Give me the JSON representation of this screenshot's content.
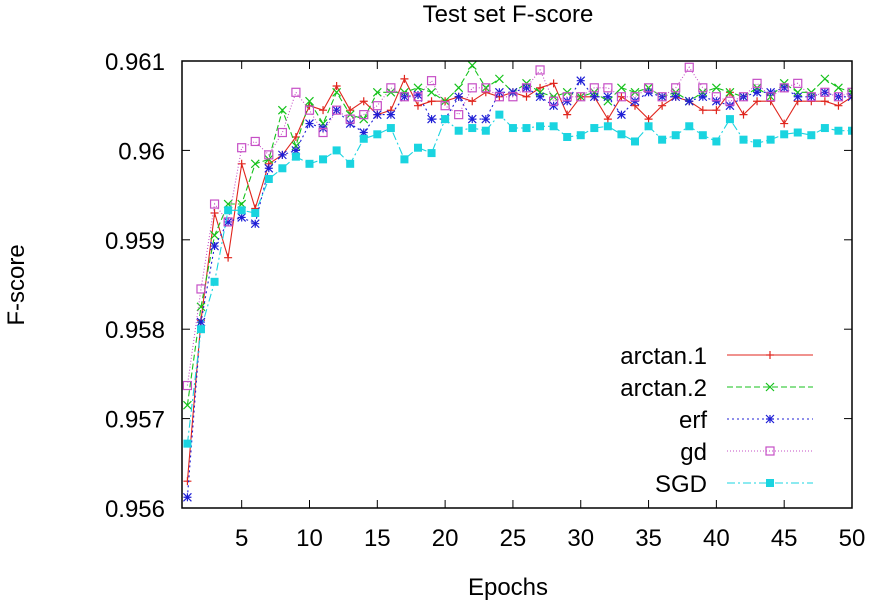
{
  "chart_data": {
    "type": "line",
    "title": "Test set F-score",
    "xlabel": "Epochs",
    "ylabel": "F-score",
    "xlim": [
      0.6,
      50
    ],
    "ylim": [
      0.956,
      0.961
    ],
    "xticks": [
      5,
      10,
      15,
      20,
      25,
      30,
      35,
      40,
      45,
      50
    ],
    "xtick_labels": [
      "5",
      "10",
      "15",
      "20",
      "25",
      "30",
      "35",
      "40",
      "45",
      "50"
    ],
    "yticks": [
      0.956,
      0.957,
      0.958,
      0.959,
      0.96,
      0.961
    ],
    "ytick_labels": [
      "0.956",
      "0.957",
      "0.958",
      "0.959",
      "0.96",
      "0.961"
    ],
    "grid": false,
    "legend_position": "bottom-right",
    "x": [
      1,
      2,
      3,
      4,
      5,
      6,
      7,
      8,
      9,
      10,
      11,
      12,
      13,
      14,
      15,
      16,
      17,
      18,
      19,
      20,
      21,
      22,
      23,
      24,
      25,
      26,
      27,
      28,
      29,
      30,
      31,
      32,
      33,
      34,
      35,
      36,
      37,
      38,
      39,
      40,
      41,
      42,
      43,
      44,
      45,
      46,
      47,
      48,
      49,
      50
    ],
    "series": [
      {
        "name": "arctan.1",
        "color": "#e0251d",
        "marker": "plus",
        "dash": "",
        "values": [
          0.9563,
          0.9581,
          0.9593,
          0.9588,
          0.95985,
          0.95935,
          0.95985,
          0.95995,
          0.96015,
          0.9605,
          0.96045,
          0.96072,
          0.96045,
          0.96055,
          0.9604,
          0.96045,
          0.9608,
          0.9605,
          0.96055,
          0.96055,
          0.9606,
          0.96055,
          0.96065,
          0.9606,
          0.96065,
          0.9606,
          0.9607,
          0.96075,
          0.9604,
          0.9606,
          0.9606,
          0.96035,
          0.9606,
          0.9605,
          0.96035,
          0.9605,
          0.9606,
          0.96055,
          0.96045,
          0.96045,
          0.96065,
          0.9604,
          0.96055,
          0.96055,
          0.9603,
          0.96055,
          0.96055,
          0.96055,
          0.9605,
          0.9606
        ]
      },
      {
        "name": "arctan.2",
        "color": "#15c21b",
        "marker": "x",
        "dash": "6,3",
        "values": [
          0.95715,
          0.95825,
          0.95905,
          0.9594,
          0.9594,
          0.95985,
          0.9599,
          0.96045,
          0.96005,
          0.96055,
          0.9603,
          0.96065,
          0.9604,
          0.96035,
          0.96065,
          0.96065,
          0.96065,
          0.9607,
          0.96065,
          0.96055,
          0.9607,
          0.96095,
          0.9607,
          0.9608,
          0.96065,
          0.96075,
          0.96065,
          0.9606,
          0.96065,
          0.9606,
          0.96065,
          0.96055,
          0.9607,
          0.96065,
          0.9607,
          0.9606,
          0.96065,
          0.96055,
          0.96065,
          0.9607,
          0.96065,
          0.9606,
          0.9607,
          0.9606,
          0.96075,
          0.96065,
          0.96065,
          0.9608,
          0.9607,
          0.96065
        ]
      },
      {
        "name": "erf",
        "color": "#1f1fd6",
        "marker": "star",
        "dash": "2,3",
        "values": [
          0.95612,
          0.95808,
          0.95893,
          0.9592,
          0.95925,
          0.95918,
          0.9598,
          0.95995,
          0.96,
          0.9603,
          0.96025,
          0.96045,
          0.9603,
          0.9602,
          0.9604,
          0.9604,
          0.9606,
          0.96062,
          0.96035,
          0.96035,
          0.9606,
          0.96035,
          0.96035,
          0.96065,
          0.96065,
          0.9607,
          0.9606,
          0.9605,
          0.96055,
          0.96078,
          0.9606,
          0.9606,
          0.9604,
          0.96055,
          0.96065,
          0.9606,
          0.9606,
          0.96055,
          0.9606,
          0.96055,
          0.9605,
          0.9606,
          0.96065,
          0.96065,
          0.9607,
          0.9606,
          0.9606,
          0.96065,
          0.9606,
          0.9606
        ]
      },
      {
        "name": "gd",
        "color": "#c64fc6",
        "marker": "square-open",
        "dash": "1,2",
        "values": [
          0.95737,
          0.95845,
          0.9594,
          0.9592,
          0.96003,
          0.9601,
          0.95995,
          0.9602,
          0.96065,
          0.96045,
          0.9602,
          0.96045,
          0.96035,
          0.9604,
          0.9605,
          0.9607,
          0.9606,
          0.9606,
          0.96078,
          0.9605,
          0.9604,
          0.9607,
          0.9607,
          0.9606,
          0.9606,
          0.9607,
          0.9609,
          0.96055,
          0.9606,
          0.9606,
          0.9607,
          0.9607,
          0.9606,
          0.9606,
          0.9607,
          0.9606,
          0.9607,
          0.96093,
          0.9607,
          0.9606,
          0.96055,
          0.9606,
          0.96075,
          0.9606,
          0.9607,
          0.96075,
          0.9606,
          0.96065,
          0.9606,
          0.96065
        ]
      },
      {
        "name": "SGD",
        "color": "#1ad4e0",
        "marker": "square-filled",
        "dash": "8,3,2,3",
        "values": [
          0.95672,
          0.958,
          0.95853,
          0.95933,
          0.95933,
          0.9593,
          0.95968,
          0.9598,
          0.95993,
          0.95985,
          0.9599,
          0.96,
          0.95985,
          0.96013,
          0.96018,
          0.96025,
          0.9599,
          0.96003,
          0.95997,
          0.96035,
          0.96022,
          0.96025,
          0.96022,
          0.9604,
          0.96025,
          0.96025,
          0.96027,
          0.96027,
          0.96015,
          0.96017,
          0.96025,
          0.96027,
          0.96018,
          0.9601,
          0.96027,
          0.96012,
          0.96017,
          0.96027,
          0.96017,
          0.9601,
          0.96035,
          0.96012,
          0.96008,
          0.96012,
          0.96018,
          0.9602,
          0.96017,
          0.96025,
          0.96022,
          0.96022
        ]
      }
    ]
  }
}
